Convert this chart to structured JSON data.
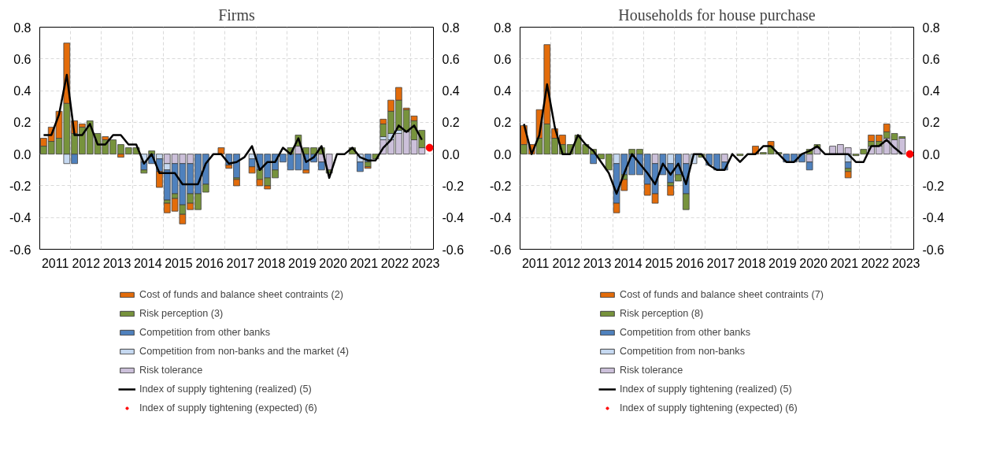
{
  "chart_data": [
    {
      "type": "bar",
      "title": "Firms",
      "stacked": true,
      "grid": true,
      "legend": "bottom",
      "x": [
        2011.125,
        2011.375,
        2011.625,
        2011.875,
        2012.125,
        2012.375,
        2012.625,
        2012.875,
        2013.125,
        2013.375,
        2013.625,
        2013.875,
        2014.125,
        2014.375,
        2014.625,
        2014.875,
        2015.125,
        2015.375,
        2015.625,
        2015.875,
        2016.125,
        2016.375,
        2016.625,
        2016.875,
        2017.125,
        2017.375,
        2017.625,
        2017.875,
        2018.125,
        2018.375,
        2018.625,
        2018.875,
        2019.125,
        2019.375,
        2019.625,
        2019.875,
        2020.125,
        2020.375,
        2020.625,
        2020.875,
        2021.125,
        2021.375,
        2021.625,
        2021.875,
        2022.125,
        2022.375,
        2022.625,
        2022.875,
        2023.125,
        2023.375
      ],
      "xlim": [
        2011,
        2023.75
      ],
      "xticks": [
        {
          "value": 2011.5,
          "label": "2011"
        },
        {
          "value": 2012,
          "label": null
        },
        {
          "value": 2012.5,
          "label": "2012"
        },
        {
          "value": 2013,
          "label": null
        },
        {
          "value": 2013.5,
          "label": "2013"
        },
        {
          "value": 2014,
          "label": null
        },
        {
          "value": 2014.5,
          "label": "2014"
        },
        {
          "value": 2015,
          "label": null
        },
        {
          "value": 2015.5,
          "label": "2015"
        },
        {
          "value": 2016,
          "label": null
        },
        {
          "value": 2016.5,
          "label": "2016"
        },
        {
          "value": 2017,
          "label": null
        },
        {
          "value": 2017.5,
          "label": "2017"
        },
        {
          "value": 2018,
          "label": null
        },
        {
          "value": 2018.5,
          "label": "2018"
        },
        {
          "value": 2019,
          "label": null
        },
        {
          "value": 2019.5,
          "label": "2019"
        },
        {
          "value": 2020,
          "label": null
        },
        {
          "value": 2020.5,
          "label": "2020"
        },
        {
          "value": 2021,
          "label": null
        },
        {
          "value": 2021.5,
          "label": "2021"
        },
        {
          "value": 2022,
          "label": null
        },
        {
          "value": 2022.5,
          "label": "2022"
        },
        {
          "value": 2023,
          "label": null
        },
        {
          "value": 2023.5,
          "label": "2023"
        }
      ],
      "ylim": [
        -0.6,
        0.8
      ],
      "yticks": [
        -0.6,
        -0.4,
        -0.2,
        {
          "value": 0,
          "label": "0.0"
        },
        0.2,
        0.4,
        0.6,
        0.8
      ],
      "y2lim": [
        -0.6,
        0.8
      ],
      "y2ticks": [
        -0.6,
        -0.4,
        -0.2,
        {
          "value": 0,
          "label": "0.0"
        },
        0.2,
        0.4,
        0.6,
        0.8
      ],
      "series": [
        {
          "name": "Risk tolerance",
          "color": "#ccc0da",
          "values": [
            null,
            null,
            null,
            null,
            null,
            null,
            null,
            null,
            null,
            null,
            null,
            null,
            null,
            null,
            null,
            null,
            -0.06,
            -0.06,
            -0.06,
            -0.06,
            null,
            null,
            null,
            null,
            null,
            null,
            null,
            null,
            null,
            null,
            null,
            null,
            null,
            0.05,
            null,
            null,
            -0.05,
            -0.1,
            null,
            null,
            null,
            null,
            null,
            null,
            0.09,
            0.09,
            0.13,
            0.14,
            0.09,
            0.04
          ]
        },
        {
          "name": "Competition from non-banks and the market (4)",
          "color": "#c6d9f1",
          "values": [
            null,
            null,
            null,
            -0.06,
            null,
            null,
            null,
            null,
            null,
            null,
            null,
            null,
            null,
            -0.05,
            null,
            -0.03,
            -0.04,
            null,
            null,
            null,
            null,
            null,
            null,
            null,
            null,
            null,
            null,
            -0.03,
            null,
            null,
            null,
            null,
            null,
            null,
            null,
            null,
            null,
            null,
            null,
            null,
            null,
            -0.05,
            null,
            null,
            0.02,
            0.04,
            0.02,
            null,
            null,
            null
          ]
        },
        {
          "name": "Competition from other banks",
          "color": "#4f81bd",
          "values": [
            null,
            null,
            null,
            null,
            -0.06,
            null,
            null,
            null,
            null,
            null,
            null,
            null,
            null,
            -0.05,
            -0.06,
            -0.08,
            -0.19,
            -0.19,
            -0.26,
            -0.19,
            -0.25,
            -0.19,
            null,
            null,
            -0.07,
            -0.15,
            null,
            -0.05,
            -0.1,
            -0.15,
            -0.1,
            -0.05,
            -0.1,
            -0.1,
            -0.1,
            -0.05,
            -0.05,
            null,
            null,
            null,
            null,
            -0.06,
            -0.05,
            null,
            null,
            null,
            null,
            null,
            null,
            null
          ]
        },
        {
          "name": "Risk perception (3)",
          "color": "#77933c",
          "values": [
            0.05,
            0.08,
            0.1,
            0.32,
            0.13,
            0.17,
            0.21,
            0.13,
            0.09,
            0.09,
            0.06,
            0.04,
            0.04,
            -0.02,
            0.02,
            null,
            -0.02,
            -0.03,
            -0.06,
            -0.06,
            -0.1,
            -0.05,
            null,
            null,
            null,
            -0.01,
            null,
            null,
            -0.06,
            -0.05,
            -0.05,
            null,
            0.04,
            0.07,
            0.04,
            0.04,
            0.04,
            -0.02,
            null,
            null,
            0.04,
            null,
            -0.03,
            -0.03,
            0.08,
            0.14,
            0.19,
            0.14,
            0.12,
            0.11
          ]
        },
        {
          "name": "Cost of funds and balance sheet contraints (2)",
          "color": "#e36c0a",
          "values": [
            0.05,
            0.09,
            0.17,
            0.38,
            0.08,
            0.02,
            null,
            null,
            0.02,
            null,
            -0.02,
            null,
            null,
            null,
            null,
            -0.1,
            -0.06,
            -0.08,
            -0.06,
            -0.04,
            null,
            null,
            null,
            0.04,
            -0.02,
            -0.04,
            null,
            -0.04,
            -0.04,
            -0.02,
            null,
            null,
            null,
            null,
            -0.02,
            null,
            null,
            null,
            null,
            null,
            null,
            null,
            -0.01,
            null,
            0.03,
            0.07,
            0.08,
            0.01,
            0.03,
            null
          ]
        },
        {
          "name": "Index of supply tightening (realized) (5)",
          "type": "line",
          "color": "#000000",
          "values": [
            0.12,
            0.12,
            0.25,
            0.5,
            0.12,
            0.12,
            0.19,
            0.06,
            0.06,
            0.12,
            0.12,
            0.06,
            0.06,
            -0.06,
            0,
            -0.12,
            -0.12,
            -0.12,
            -0.19,
            -0.19,
            -0.19,
            -0.06,
            0,
            0,
            -0.06,
            -0.05,
            -0.02,
            0.05,
            -0.1,
            -0.05,
            -0.05,
            0.04,
            0,
            0.1,
            -0.05,
            -0.02,
            0.05,
            -0.15,
            0,
            0,
            0.04,
            -0.02,
            -0.04,
            -0.04,
            0.04,
            0.09,
            0.18,
            0.14,
            0.18,
            0.09
          ]
        },
        {
          "name": "Index of supply tightening (expected) (6)",
          "type": "scatter",
          "marker": "circle",
          "color": "#ff0000",
          "x": [
            2023.625
          ],
          "values": [
            0.04
          ]
        }
      ]
    },
    {
      "type": "bar",
      "title": "Households for house purchase",
      "stacked": true,
      "grid": true,
      "legend": "bottom",
      "x": [
        2011.125,
        2011.375,
        2011.625,
        2011.875,
        2012.125,
        2012.375,
        2012.625,
        2012.875,
        2013.125,
        2013.375,
        2013.625,
        2013.875,
        2014.125,
        2014.375,
        2014.625,
        2014.875,
        2015.125,
        2015.375,
        2015.625,
        2015.875,
        2016.125,
        2016.375,
        2016.625,
        2016.875,
        2017.125,
        2017.375,
        2017.625,
        2017.875,
        2018.125,
        2018.375,
        2018.625,
        2018.875,
        2019.125,
        2019.375,
        2019.625,
        2019.875,
        2020.125,
        2020.375,
        2020.625,
        2020.875,
        2021.125,
        2021.375,
        2021.625,
        2021.875,
        2022.125,
        2022.375,
        2022.625,
        2022.875,
        2023.125,
        2023.375
      ],
      "xlim": [
        2011,
        2023.75
      ],
      "xticks": [
        {
          "value": 2011.5,
          "label": "2011"
        },
        {
          "value": 2012,
          "label": null
        },
        {
          "value": 2012.5,
          "label": "2012"
        },
        {
          "value": 2013,
          "label": null
        },
        {
          "value": 2013.5,
          "label": "2013"
        },
        {
          "value": 2014,
          "label": null
        },
        {
          "value": 2014.5,
          "label": "2014"
        },
        {
          "value": 2015,
          "label": null
        },
        {
          "value": 2015.5,
          "label": "2015"
        },
        {
          "value": 2016,
          "label": null
        },
        {
          "value": 2016.5,
          "label": "2016"
        },
        {
          "value": 2017,
          "label": null
        },
        {
          "value": 2017.5,
          "label": "2017"
        },
        {
          "value": 2018,
          "label": null
        },
        {
          "value": 2018.5,
          "label": "2018"
        },
        {
          "value": 2019,
          "label": null
        },
        {
          "value": 2019.5,
          "label": "2019"
        },
        {
          "value": 2020,
          "label": null
        },
        {
          "value": 2020.5,
          "label": "2020"
        },
        {
          "value": 2021,
          "label": null
        },
        {
          "value": 2021.5,
          "label": "2021"
        },
        {
          "value": 2022,
          "label": null
        },
        {
          "value": 2022.5,
          "label": "2022"
        },
        {
          "value": 2023,
          "label": null
        },
        {
          "value": 2023.5,
          "label": "2023"
        }
      ],
      "ylim": [
        -0.6,
        0.8
      ],
      "yticks": [
        -0.6,
        -0.4,
        -0.2,
        {
          "value": 0,
          "label": "0.0"
        },
        0.2,
        0.4,
        0.6,
        0.8
      ],
      "y2lim": [
        -0.6,
        0.8
      ],
      "y2ticks": [
        -0.6,
        -0.4,
        -0.2,
        {
          "value": 0,
          "label": "0.0"
        },
        0.2,
        0.4,
        0.6,
        0.8
      ],
      "series": [
        {
          "name": "Risk tolerance",
          "color": "#ccc0da",
          "values": [
            null,
            null,
            null,
            null,
            null,
            null,
            null,
            null,
            null,
            null,
            null,
            null,
            null,
            null,
            null,
            null,
            null,
            -0.06,
            null,
            null,
            null,
            -0.06,
            null,
            null,
            null,
            null,
            -0.05,
            null,
            null,
            null,
            null,
            null,
            null,
            null,
            null,
            null,
            null,
            -0.05,
            0.04,
            null,
            0.05,
            0.06,
            0.04,
            null,
            null,
            0.05,
            0.05,
            0.1,
            0.09,
            0.1
          ]
        },
        {
          "name": "Competition from non-banks",
          "color": "#c6d9f1",
          "values": [
            null,
            null,
            null,
            null,
            null,
            null,
            null,
            null,
            null,
            null,
            null,
            null,
            -0.06,
            null,
            null,
            null,
            null,
            null,
            null,
            -0.06,
            null,
            null,
            -0.06,
            null,
            null,
            null,
            null,
            null,
            null,
            null,
            null,
            null,
            null,
            null,
            null,
            null,
            null,
            null,
            null,
            null,
            null,
            null,
            -0.05,
            null,
            null,
            null,
            null,
            null,
            null,
            null
          ]
        },
        {
          "name": "Competition from other banks",
          "color": "#4f81bd",
          "values": [
            null,
            null,
            null,
            null,
            null,
            null,
            null,
            null,
            null,
            -0.06,
            null,
            null,
            -0.25,
            -0.13,
            -0.13,
            -0.13,
            -0.19,
            -0.19,
            -0.13,
            -0.12,
            -0.13,
            -0.19,
            null,
            null,
            -0.07,
            -0.1,
            -0.05,
            null,
            null,
            null,
            null,
            null,
            null,
            null,
            -0.05,
            -0.05,
            -0.05,
            -0.05,
            null,
            null,
            null,
            null,
            -0.04,
            null,
            null,
            null,
            null,
            null,
            null,
            null
          ]
        },
        {
          "name": "Risk perception (8)",
          "color": "#77933c",
          "values": [
            0.06,
            null,
            0.1,
            0.19,
            0.1,
            0.06,
            0.06,
            0.12,
            0.06,
            0.03,
            -0.03,
            -0.1,
            null,
            -0.03,
            0.03,
            0.03,
            null,
            null,
            null,
            -0.02,
            -0.04,
            -0.1,
            null,
            -0.02,
            null,
            null,
            null,
            null,
            -0.01,
            null,
            null,
            0.01,
            0.05,
            0.01,
            null,
            null,
            null,
            0.03,
            0.02,
            null,
            null,
            null,
            -0.02,
            -0.01,
            0.03,
            0.03,
            0.03,
            0.04,
            0.04,
            0.01
          ]
        },
        {
          "name": "Cost of funds and balance sheet contraints (7)",
          "color": "#e36c0a",
          "values": [
            0.12,
            0.06,
            0.18,
            0.5,
            0.06,
            0.06,
            null,
            null,
            null,
            null,
            null,
            null,
            -0.06,
            -0.07,
            null,
            null,
            -0.07,
            -0.06,
            null,
            -0.06,
            null,
            null,
            null,
            null,
            null,
            null,
            null,
            null,
            null,
            null,
            0.05,
            null,
            0.03,
            null,
            null,
            null,
            null,
            null,
            null,
            null,
            null,
            null,
            -0.04,
            null,
            null,
            0.04,
            0.04,
            0.05,
            null,
            null
          ]
        },
        {
          "name": "Index of supply tightening (realized) (5)",
          "type": "line",
          "color": "#000000",
          "values": [
            0.19,
            0,
            0.12,
            0.44,
            0.17,
            0,
            0,
            0.12,
            0.06,
            0.02,
            -0.05,
            -0.12,
            -0.25,
            -0.12,
            0,
            -0.06,
            -0.12,
            -0.19,
            -0.06,
            -0.13,
            -0.06,
            -0.19,
            0,
            0,
            -0.07,
            -0.1,
            -0.1,
            0,
            -0.05,
            0,
            0,
            0.05,
            0.05,
            0,
            -0.05,
            -0.05,
            0,
            0.02,
            0.05,
            0,
            0,
            0,
            0,
            -0.05,
            -0.05,
            0.05,
            0.05,
            0.09,
            0.04,
            0
          ]
        },
        {
          "name": "Index of supply tightening (expected) (6)",
          "type": "scatter",
          "marker": "circle",
          "color": "#ff0000",
          "x": [
            2023.625
          ],
          "values": [
            0
          ]
        }
      ]
    }
  ]
}
